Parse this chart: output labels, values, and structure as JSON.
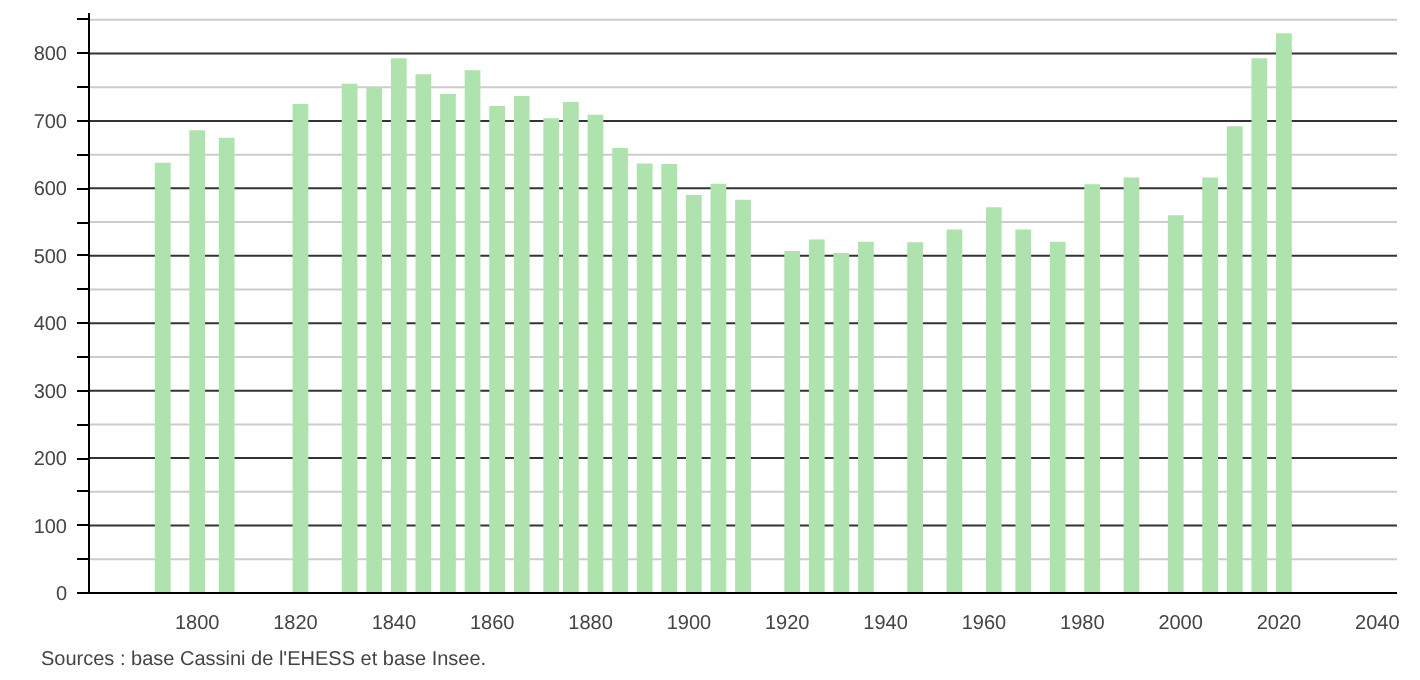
{
  "chart_data": {
    "type": "bar",
    "x": [
      1793,
      1800,
      1806,
      1821,
      1831,
      1836,
      1841,
      1846,
      1851,
      1856,
      1861,
      1866,
      1872,
      1876,
      1881,
      1886,
      1891,
      1896,
      1901,
      1906,
      1911,
      1921,
      1926,
      1931,
      1936,
      1946,
      1954,
      1962,
      1968,
      1975,
      1982,
      1990,
      1999,
      2006,
      2011,
      2016,
      2021
    ],
    "values": [
      638,
      686,
      675,
      725,
      755,
      750,
      793,
      769,
      740,
      775,
      722,
      737,
      704,
      728,
      709,
      660,
      637,
      636,
      590,
      607,
      583,
      507,
      524,
      504,
      521,
      520,
      539,
      572,
      539,
      521,
      606,
      616,
      560,
      616,
      692,
      793,
      830
    ],
    "color": "#aee3ae",
    "xlim": [
      1778,
      2044
    ],
    "xticks": [
      1800,
      1820,
      1840,
      1860,
      1880,
      1900,
      1920,
      1940,
      1960,
      1980,
      2000,
      2020,
      2040
    ],
    "ylim": [
      0,
      860
    ],
    "yticks": [
      0,
      {
        "value": 50,
        "label": null
      },
      100,
      {
        "value": 150,
        "label": null
      },
      200,
      {
        "value": 250,
        "label": null
      },
      300,
      {
        "value": 350,
        "label": null
      },
      400,
      {
        "value": 450,
        "label": null
      },
      500,
      {
        "value": 550,
        "label": null
      },
      600,
      {
        "value": 650,
        "label": null
      },
      700,
      {
        "value": 750,
        "label": null
      },
      800,
      {
        "value": 850,
        "label": null
      }
    ],
    "grid": "y",
    "annotations": [
      "Sources : base Cassini de l'EHESS et base Insee."
    ]
  }
}
